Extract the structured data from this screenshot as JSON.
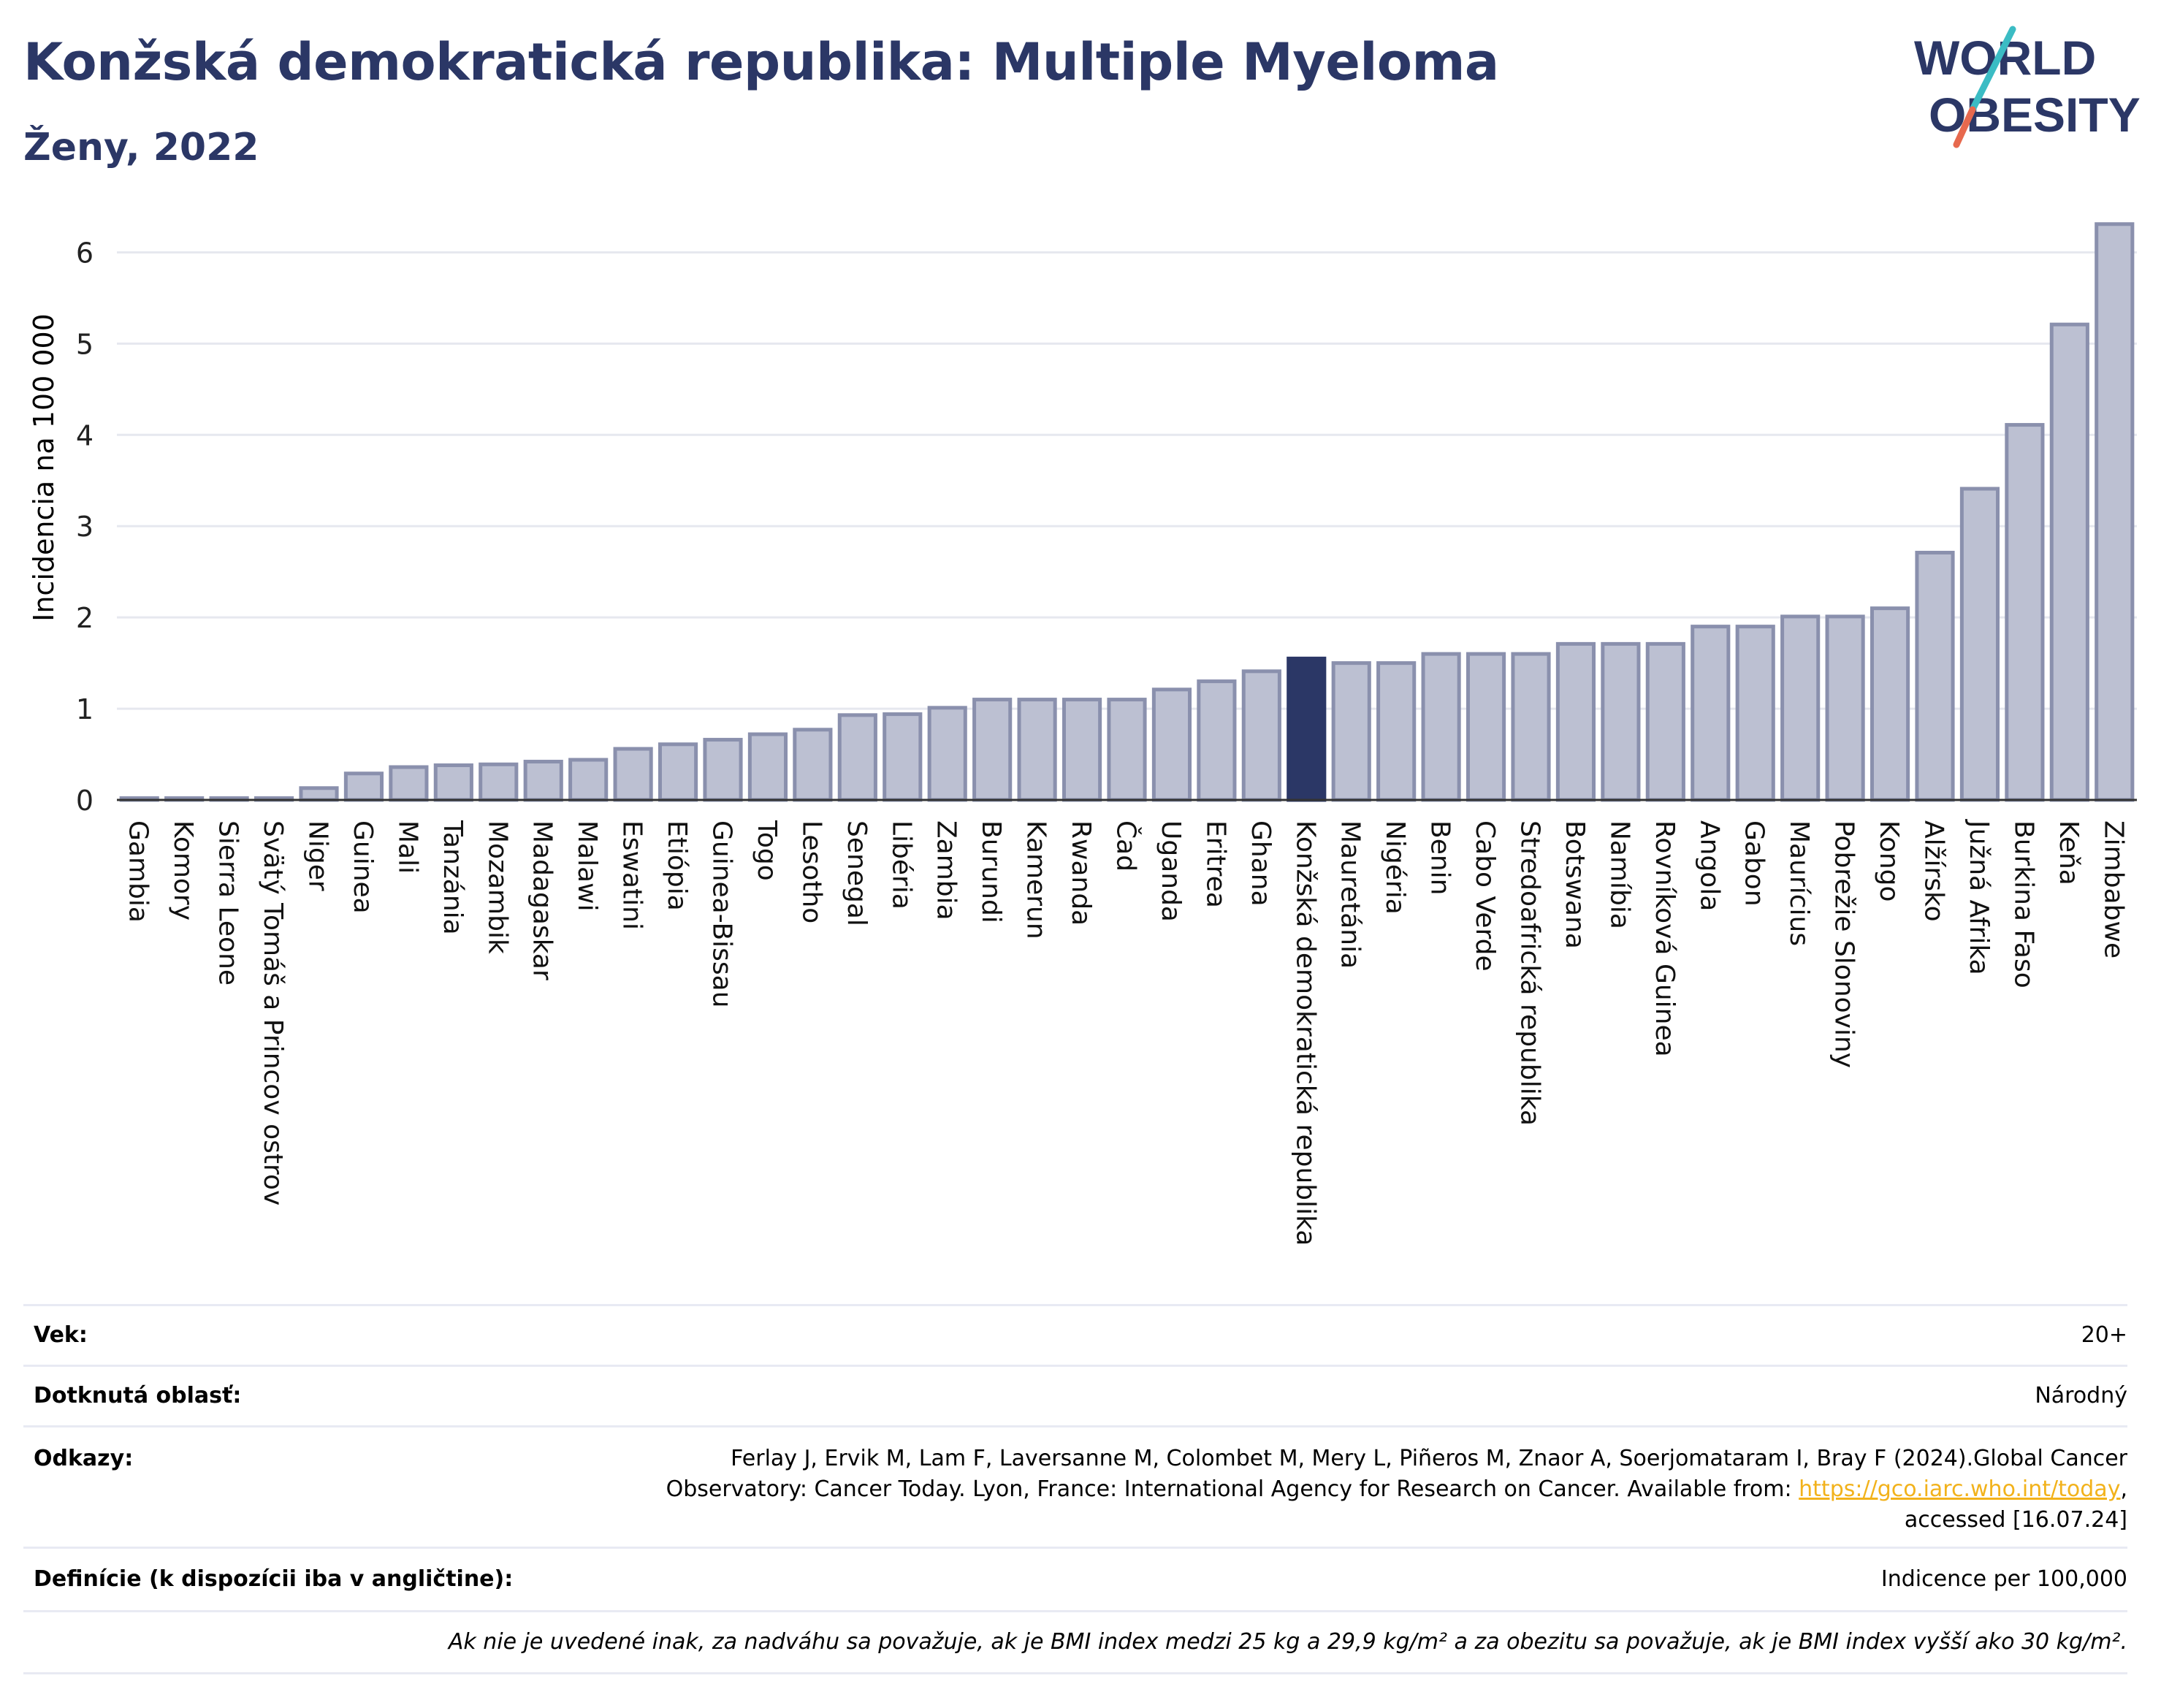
{
  "header": {
    "title": "Konžská demokratická republika: Multiple Myeloma",
    "subtitle": "Ženy, 2022"
  },
  "logo": {
    "line1": "WORLD",
    "line2": "OBESITY"
  },
  "colors": {
    "bar": "#bcc0d2",
    "bar_edge": "#8a90ad",
    "highlight": "#2b3766",
    "title": "#2b3766"
  },
  "chart_data": {
    "type": "bar",
    "ylabel": "Incidencia na 100 000",
    "ylim": [
      0,
      6.5
    ],
    "yticks": [
      0,
      1,
      2,
      3,
      4,
      5,
      6
    ],
    "grid": true,
    "highlight": "Konžská demokratická republika",
    "categories": [
      "Gambia",
      "Komory",
      "Sierra Leone",
      "Svätý Tomáš a Princov ostrov",
      "Niger",
      "Guinea",
      "Mali",
      "Tanzánia",
      "Mozambik",
      "Madagaskar",
      "Malawi",
      "Eswatini",
      "Etiópia",
      "Guinea-Bissau",
      "Togo",
      "Lesotho",
      "Senegal",
      "Libéria",
      "Zambia",
      "Burundi",
      "Kamerun",
      "Rwanda",
      "Čad",
      "Uganda",
      "Eritrea",
      "Ghana",
      "Konžská demokratická republika",
      "Mauretánia",
      "Nigéria",
      "Benin",
      "Cabo Verde",
      "Stredoafrická republika",
      "Botswana",
      "Namíbia",
      "Rovníková Guinea",
      "Angola",
      "Gabon",
      "Maurícius",
      "Pobrežie Slonoviny",
      "Kongo",
      "Alžírsko",
      "Južná Afrika",
      "Burkina Faso",
      "Keňa",
      "Zimbabwe"
    ],
    "values": [
      0.02,
      0.02,
      0.02,
      0.02,
      0.13,
      0.29,
      0.36,
      0.38,
      0.39,
      0.42,
      0.44,
      0.56,
      0.61,
      0.66,
      0.72,
      0.77,
      0.93,
      0.94,
      1.01,
      1.1,
      1.1,
      1.1,
      1.1,
      1.21,
      1.3,
      1.41,
      1.55,
      1.5,
      1.5,
      1.6,
      1.6,
      1.6,
      1.71,
      1.71,
      1.71,
      1.9,
      1.9,
      2.01,
      2.01,
      2.1,
      2.71,
      3.41,
      4.11,
      5.21,
      6.31
    ]
  },
  "info": {
    "age_label": "Vek:",
    "age_value": "20+",
    "area_label": "Dotknutá oblasť:",
    "area_value": "Národný",
    "refs_label": "Odkazy:",
    "refs_line1": "Ferlay J, Ervik M, Lam F, Laversanne M, Colombet M, Mery L, Piñeros M, Znaor A, Soerjomataram I, Bray F (2024).Global Cancer",
    "refs_line2": "Observatory: Cancer Today. Lyon, France: International Agency for Research on Cancer. Available from: ",
    "refs_link": "https://gco.iarc.who.int/today",
    "refs_line2_end": ",",
    "refs_line3": "accessed [16.07.24]",
    "def_label": "Definície (k dispozícii iba v angličtine):",
    "def_value": "Indicence per 100,000",
    "note": "Ak nie je uvedené inak, za nadváhu sa považuje, ak je BMI index medzi 25 kg a 29,9 kg/m² a za obezitu sa považuje, ak je BMI index vyšší ako 30 kg/m²."
  }
}
